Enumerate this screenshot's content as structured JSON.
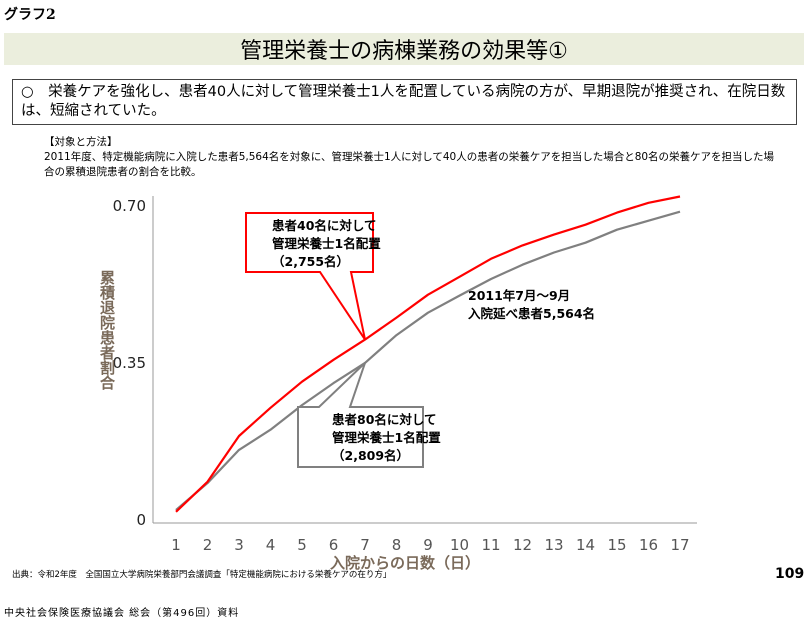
{
  "graph_label": "グラフ2",
  "title": "管理栄養士の病棟業務の効果等①",
  "summary": "○　栄養ケアを強化し、患者40人に対して管理栄養士1人を配置している病院の方が、早期退院が推奨され、在院日数は、短縮されていた。",
  "method": {
    "heading": "【対象と方法】",
    "text": "2011年度、特定機能病院に入院した患者5,564名を対象に、管理栄養士1人に対して40人の患者の栄養ケアを担当した場合と80名の栄養ケアを担当した場合の累積退院患者の割合を比較。"
  },
  "chart_data": {
    "type": "line",
    "xlabel": "入院からの日数（日）",
    "ylabel": "累積退院患者割合",
    "x": [
      1,
      2,
      3,
      4,
      5,
      6,
      7,
      8,
      9,
      10,
      11,
      12,
      13,
      14,
      15,
      16,
      17
    ],
    "ylim": [
      0,
      0.7
    ],
    "yticks": [
      "0",
      "0.35",
      "0.70"
    ],
    "ytick_values": [
      0,
      0.35,
      0.7
    ],
    "grid": false,
    "series": [
      {
        "name": "患者40名に対して管理栄養士1名配置（2,755名）",
        "color": "#ff0000",
        "values": [
          0.016,
          0.083,
          0.185,
          0.248,
          0.306,
          0.355,
          0.4,
          0.449,
          0.5,
          0.54,
          0.58,
          0.61,
          0.634,
          0.656,
          0.683,
          0.705,
          0.719
        ]
      },
      {
        "name": "患者80名に対して管理栄養士1名配置（2,809名）",
        "color": "#808080",
        "values": [
          0.02,
          0.08,
          0.154,
          0.199,
          0.254,
          0.303,
          0.348,
          0.41,
          0.46,
          0.498,
          0.535,
          0.567,
          0.594,
          0.616,
          0.645,
          0.665,
          0.685
        ]
      }
    ],
    "callouts": [
      {
        "lines": [
          "患者40名に対して",
          "管理栄養士1名配置",
          "（2,755名）"
        ],
        "color": "#ff0000"
      },
      {
        "lines": [
          "患者80名に対して",
          "管理栄養士1名配置",
          "（2,809名）"
        ],
        "color": "#808080"
      }
    ],
    "annotation": [
      "2011年7月～9月",
      "入院延べ患者5,564名"
    ]
  },
  "source": "出典：令和2年度　全国国立大学病院栄養部門会議調査「特定機能病院における栄養ケアの在り方」",
  "page_number": "109",
  "footer": "中央社会保険医療協議会 総会（第496回）資料"
}
